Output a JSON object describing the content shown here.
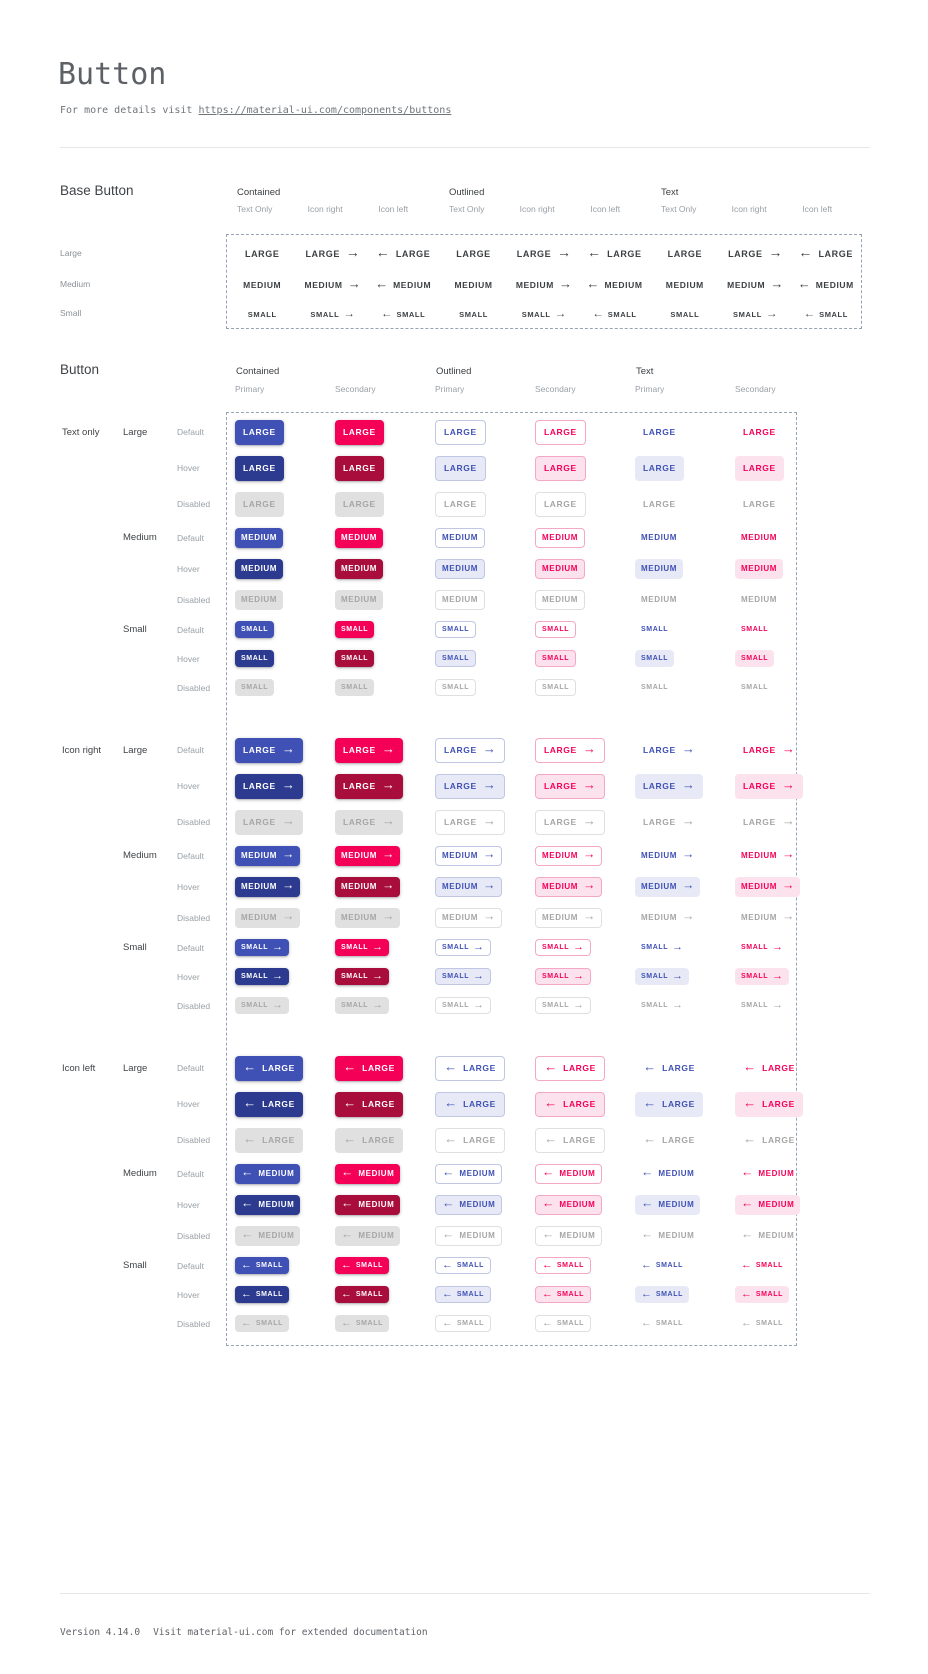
{
  "header": {
    "title": "Button",
    "subtitle_prefix": "For more details visit ",
    "subtitle_link": "https://material-ui.com/components/buttons"
  },
  "base_button": {
    "label": "Base Button",
    "column_groups": [
      {
        "label": "Contained",
        "subcolumns": [
          "Text Only",
          "Icon right",
          "Icon left"
        ]
      },
      {
        "label": "Outlined",
        "subcolumns": [
          "Text Only",
          "Icon right",
          "Icon left"
        ]
      },
      {
        "label": "Text",
        "subcolumns": [
          "Text Only",
          "Icon right",
          "Icon left"
        ]
      }
    ],
    "rows": [
      {
        "label": "Large",
        "button_text": "LARGE"
      },
      {
        "label": "Medium",
        "button_text": "MEDIUM"
      },
      {
        "label": "Small",
        "button_text": "SMALL"
      }
    ]
  },
  "button_section": {
    "label": "Button",
    "column_groups": [
      {
        "label": "Contained",
        "subcolumns": [
          "Primary",
          "Secondary"
        ]
      },
      {
        "label": "Outlined",
        "subcolumns": [
          "Primary",
          "Secondary"
        ]
      },
      {
        "label": "Text",
        "subcolumns": [
          "Primary",
          "Secondary"
        ]
      }
    ],
    "row_groups": [
      {
        "label": "Text only",
        "icon": "none"
      },
      {
        "label": "Icon right",
        "icon": "arrow-right"
      },
      {
        "label": "Icon left",
        "icon": "arrow-left"
      }
    ],
    "sizes": [
      {
        "label": "Large",
        "button_text": "LARGE"
      },
      {
        "label": "Medium",
        "button_text": "MEDIUM"
      },
      {
        "label": "Small",
        "button_text": "SMALL"
      }
    ],
    "states": [
      "Default",
      "Hover",
      "Disabled"
    ]
  },
  "icons": {
    "arrow_right": "→",
    "arrow_left": "←"
  },
  "colors": {
    "primary": "#3F51B5",
    "primary_dark": "#2C3A8F",
    "secondary": "#F50057",
    "secondary_dark": "#A80D3C",
    "primary_tint": "#E7EAF6",
    "secondary_tint": "#FCE2EC",
    "outlined_primary_border": "#BFC7E3",
    "outlined_secondary_border": "#F5A8C6",
    "disabled_bg": "#E0E0E0",
    "disabled_text": "#A6A6A6",
    "disabled_border": "#DFDFDF",
    "base_text": "#3C4043",
    "dashed_border": "#97A3B4"
  },
  "footer": {
    "version": "Version 4.14.0",
    "note": "Visit material-ui.com for extended documentation"
  }
}
